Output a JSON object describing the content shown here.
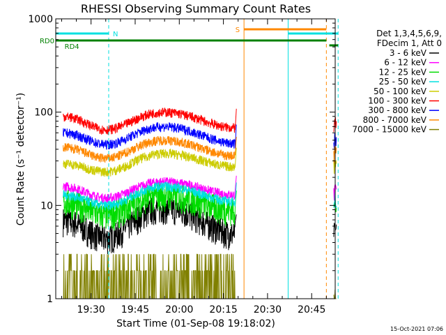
{
  "chart_data": {
    "type": "line",
    "title": "RHESSI Observing Summary Count Rates",
    "xlabel": "Start Time (01-Sep-08 19:18:02)",
    "ylabel": "Count Rate (s⁻¹ detector⁻¹)",
    "yscale": "log",
    "ylim": [
      1,
      1000
    ],
    "y_ticks": [
      "1",
      "10",
      "100",
      "1000"
    ],
    "x_ticks": [
      "19:30",
      "19:45",
      "20:00",
      "20:15",
      "20:30",
      "20:45"
    ],
    "legend_header": [
      "Det 1,3,4,5,6,9,",
      "FDecim 1, Att 0"
    ],
    "legend_position": "right",
    "series": [
      {
        "name": "3 - 6 keV",
        "color": "#000000",
        "levels": [
          7,
          4.5,
          9.5,
          5
        ]
      },
      {
        "name": "6 - 12 keV",
        "color": "#ff00ff",
        "levels": [
          16,
          12,
          18,
          13
        ]
      },
      {
        "name": "12 - 25 keV",
        "color": "#00dd00",
        "levels": [
          11,
          8,
          13,
          9
        ]
      },
      {
        "name": "25 - 50 keV",
        "color": "#00e0e0",
        "levels": [
          13,
          10,
          16,
          11
        ]
      },
      {
        "name": "50 - 100 keV",
        "color": "#cccc00",
        "levels": [
          28,
          23,
          36,
          26
        ]
      },
      {
        "name": "100 - 300 keV",
        "color": "#ff0000",
        "levels": [
          90,
          65,
          100,
          68
        ]
      },
      {
        "name": "300 - 800 keV",
        "color": "#0000ff",
        "levels": [
          60,
          45,
          70,
          46
        ]
      },
      {
        "name": "800 - 7000 keV",
        "color": "#ff8800",
        "levels": [
          42,
          32,
          50,
          34
        ]
      },
      {
        "name": "7000 - 15000 keV",
        "color": "#808000",
        "levels": [
          1,
          1,
          1,
          1
        ]
      }
    ],
    "annotations": {
      "flags": [
        {
          "label": "N",
          "color": "#00e0e0"
        },
        {
          "label": "S",
          "color": "#ff8800"
        },
        {
          "label": "RD0",
          "color": "#008000"
        },
        {
          "label": "RD4",
          "color": "#008000"
        }
      ],
      "vertical_markers": [
        {
          "time": "19:18",
          "color": "#00e0e0",
          "style": "solid"
        },
        {
          "time": "19:36",
          "color": "#00e0e0",
          "style": "dashed"
        },
        {
          "time": "20:22",
          "color": "#ff8800",
          "style": "solid"
        },
        {
          "time": "20:37",
          "color": "#00e0e0",
          "style": "solid"
        },
        {
          "time": "20:50",
          "color": "#ff8800",
          "style": "dashed"
        },
        {
          "time": "20:54",
          "color": "#00e0e0",
          "style": "dashed"
        }
      ]
    },
    "timestamp": "15-Oct-2021 07:06"
  }
}
